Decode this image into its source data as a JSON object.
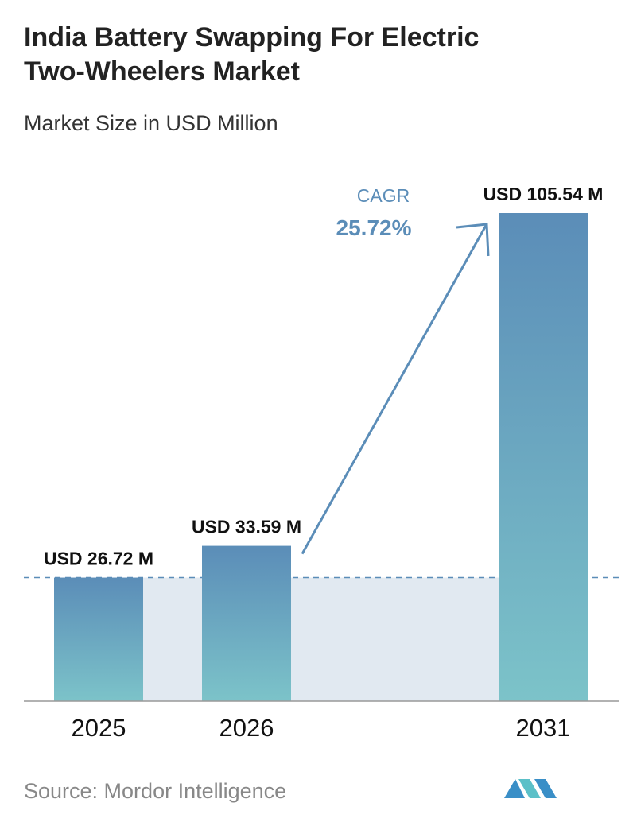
{
  "chart_data": {
    "type": "bar",
    "title": "India Battery Swapping For Electric Two-Wheelers Market",
    "subtitle": "Market Size in USD Million",
    "categories": [
      "2025",
      "2026",
      "2031"
    ],
    "values": [
      26.72,
      33.59,
      105.54
    ],
    "value_labels": [
      "USD 26.72 M",
      "USD 33.59 M",
      "USD 105.54 M"
    ],
    "color_top": "#5b8db8",
    "color_bottom": "#7cc3c9",
    "cagr_label": "CAGR",
    "cagr_value": "25.72%",
    "source": "Source: Mordor Intelligence"
  }
}
